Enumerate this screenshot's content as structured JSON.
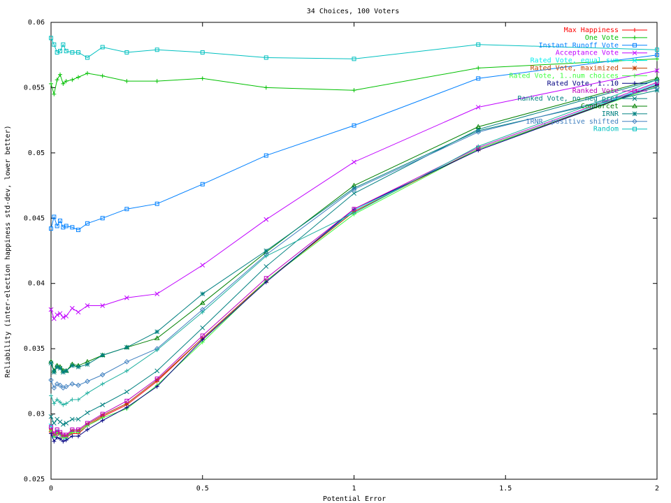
{
  "chart_data": {
    "type": "line",
    "title": "34 Choices, 100 Voters",
    "xlabel": "Potential Error",
    "ylabel": "Reliability (inter-election happiness std-dev, lower better)",
    "xlim": [
      0,
      2
    ],
    "ylim": [
      0.025,
      0.06
    ],
    "x_ticks": [
      "0",
      "0.5",
      "1",
      "1.5",
      "2"
    ],
    "y_ticks": [
      "0.025",
      "0.03",
      "0.035",
      "0.04",
      "0.045",
      "0.05",
      "0.055",
      "0.06"
    ],
    "grid": false,
    "legend_position": "top-right",
    "x": [
      0,
      0.01,
      0.02,
      0.03,
      0.04,
      0.05,
      0.07,
      0.09,
      0.12,
      0.17,
      0.25,
      0.35,
      0.5,
      0.71,
      1.0,
      1.41,
      2.0
    ],
    "series": [
      {
        "name": "Max Happiness",
        "color": "#ff0000",
        "marker": "plus",
        "values": [
          0.0286,
          0.0283,
          0.0285,
          0.0284,
          0.0283,
          0.0282,
          0.0285,
          0.0285,
          0.0291,
          0.0298,
          0.0307,
          0.0325,
          0.0358,
          0.0402,
          0.0455,
          0.0503,
          0.0552
        ]
      },
      {
        "name": "One Vote",
        "color": "#00c000",
        "marker": "plus",
        "values": [
          0.0553,
          0.0545,
          0.0556,
          0.056,
          0.0553,
          0.0555,
          0.0556,
          0.0558,
          0.0561,
          0.0559,
          0.0555,
          0.0555,
          0.0557,
          0.055,
          0.0548,
          0.0565,
          0.0572
        ]
      },
      {
        "name": "Instant Runoff Vote",
        "color": "#0080ff",
        "marker": "square",
        "values": [
          0.0442,
          0.0451,
          0.0444,
          0.0448,
          0.0443,
          0.0444,
          0.0443,
          0.0441,
          0.0446,
          0.045,
          0.0457,
          0.0461,
          0.0476,
          0.0498,
          0.0521,
          0.0557,
          0.0575
        ]
      },
      {
        "name": "Acceptance Vote",
        "color": "#c000ff",
        "marker": "x",
        "values": [
          0.038,
          0.0373,
          0.0376,
          0.0377,
          0.0374,
          0.0375,
          0.0381,
          0.0378,
          0.0383,
          0.0383,
          0.0389,
          0.0392,
          0.0414,
          0.0449,
          0.0493,
          0.0535,
          0.0563
        ]
      },
      {
        "name": "Rated Vote, equal sum",
        "color": "#00eeee",
        "marker": "x",
        "values": [
          0.0291,
          0.0283,
          0.0287,
          0.0285,
          0.0283,
          0.0282,
          0.0287,
          0.0287,
          0.0292,
          0.0299,
          0.0308,
          0.0326,
          0.0358,
          0.0402,
          0.0456,
          0.0503,
          0.0553
        ]
      },
      {
        "name": "Rated Vote, maximized",
        "color": "#c04000",
        "marker": "star",
        "values": [
          0.0288,
          0.0284,
          0.0286,
          0.0285,
          0.0283,
          0.0283,
          0.0287,
          0.0287,
          0.0292,
          0.0299,
          0.0308,
          0.0326,
          0.0358,
          0.0402,
          0.0455,
          0.0503,
          0.0552
        ]
      },
      {
        "name": "Rated Vote, 1..num choices",
        "color": "#40ff40",
        "marker": "plus",
        "values": [
          0.0287,
          0.0283,
          0.0286,
          0.0284,
          0.0282,
          0.0282,
          0.0286,
          0.0286,
          0.0291,
          0.0297,
          0.0304,
          0.0322,
          0.0355,
          0.0402,
          0.0453,
          0.0503,
          0.0551
        ]
      },
      {
        "name": "Rated Vote, 1..10",
        "color": "#000080",
        "marker": "plus",
        "values": [
          0.0285,
          0.0279,
          0.0282,
          0.0281,
          0.0279,
          0.028,
          0.0283,
          0.0283,
          0.0288,
          0.0295,
          0.0305,
          0.0321,
          0.0357,
          0.0401,
          0.0457,
          0.0502,
          0.0552
        ]
      },
      {
        "name": "Ranked Vote",
        "color": "#c000c0",
        "marker": "square",
        "values": [
          0.029,
          0.0285,
          0.0288,
          0.0286,
          0.0284,
          0.0284,
          0.0288,
          0.0288,
          0.0293,
          0.03,
          0.031,
          0.0327,
          0.036,
          0.0404,
          0.0457,
          0.0504,
          0.0554
        ]
      },
      {
        "name": "Ranked Vote, no neg pref",
        "color": "#008080",
        "marker": "x",
        "values": [
          0.0298,
          0.0293,
          0.0296,
          0.0294,
          0.0292,
          0.0293,
          0.0296,
          0.0296,
          0.0301,
          0.0307,
          0.0317,
          0.0333,
          0.0366,
          0.0413,
          0.0469,
          0.0518,
          0.0556
        ]
      },
      {
        "name": "Condorcet",
        "color": "#008000",
        "marker": "triangle",
        "values": [
          0.034,
          0.0333,
          0.0337,
          0.0336,
          0.0333,
          0.0333,
          0.0338,
          0.0337,
          0.034,
          0.0345,
          0.0351,
          0.0358,
          0.0385,
          0.0424,
          0.0475,
          0.052,
          0.0557
        ]
      },
      {
        "name": "IRNR",
        "color": "#008080",
        "marker": "star",
        "values": [
          0.0339,
          0.0332,
          0.0336,
          0.0335,
          0.0332,
          0.0333,
          0.0337,
          0.0336,
          0.0338,
          0.0345,
          0.0351,
          0.0363,
          0.0392,
          0.0425,
          0.0473,
          0.0517,
          0.0548
        ]
      },
      {
        "name": "IRNR, positive shifted",
        "color": "#4080c0",
        "marker": "diamond",
        "values": [
          0.0326,
          0.032,
          0.0323,
          0.0322,
          0.032,
          0.0321,
          0.0323,
          0.0322,
          0.0325,
          0.033,
          0.034,
          0.035,
          0.038,
          0.0422,
          0.0472,
          0.0516,
          0.055
        ]
      },
      {
        "name": "Random",
        "color": "#00c0c0",
        "marker": "square",
        "values": [
          0.0588,
          0.0583,
          0.0577,
          0.0578,
          0.0583,
          0.0578,
          0.0577,
          0.0577,
          0.0573,
          0.0581,
          0.0577,
          0.0579,
          0.0577,
          0.0573,
          0.0572,
          0.0583,
          0.0579
        ]
      },
      {
        "name": "",
        "color": "#20b0a0",
        "marker": "plus",
        "values": [
          0.0314,
          0.0308,
          0.0311,
          0.0309,
          0.0307,
          0.0308,
          0.0311,
          0.0311,
          0.0316,
          0.0323,
          0.0333,
          0.0349,
          0.0378,
          0.0421,
          0.0454,
          0.0505,
          0.0556
        ]
      }
    ]
  }
}
